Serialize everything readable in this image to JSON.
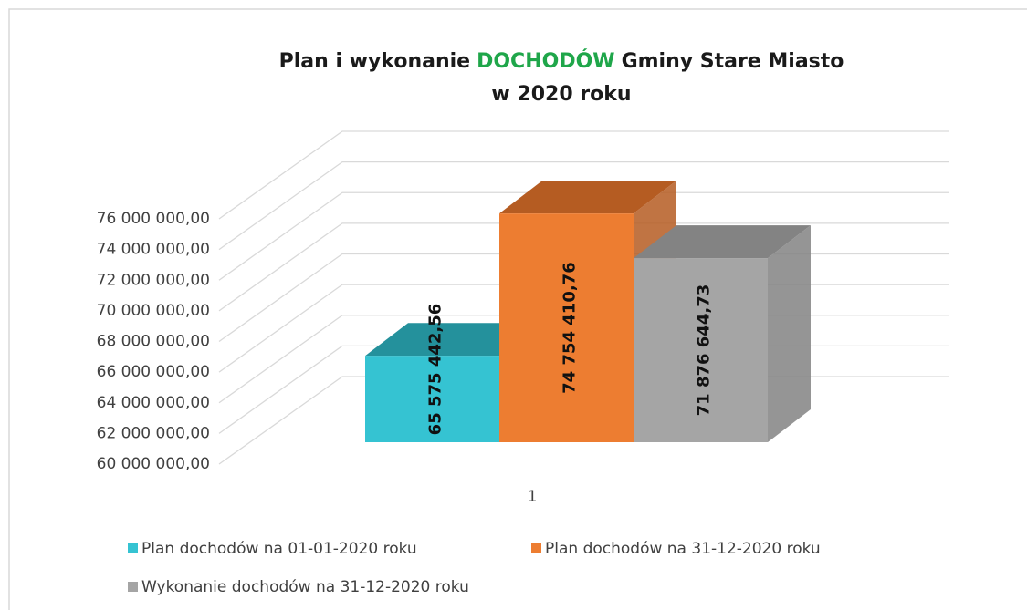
{
  "chart_data": {
    "type": "bar3d",
    "title": {
      "before": "Plan i wykonanie",
      "highlight": "DOCHODÓW",
      "after": "Gminy Stare Miasto",
      "line2": "w 2020 roku",
      "highlight_color": "#1fa64a"
    },
    "categories": [
      "1"
    ],
    "series": [
      {
        "name": "Plan dochodów na 01-01-2020 roku",
        "color": "#35c3d2",
        "top_color": "#24919c",
        "values": [
          65575442.56
        ],
        "value_labels": [
          "65 575 442,56"
        ]
      },
      {
        "name": "Plan dochodów na 31-12-2020 roku",
        "color": "#ed7d31",
        "top_color": "#b55c22",
        "values": [
          74754410.76
        ],
        "value_labels": [
          "74 754 410,76"
        ]
      },
      {
        "name": "Wykonanie dochodów na 31-12-2020 roku",
        "color": "#a5a5a5",
        "top_color": "#838383",
        "values": [
          71876644.73
        ],
        "value_labels": [
          "71 876 644,73"
        ]
      }
    ],
    "ylim": [
      60000000,
      76000000
    ],
    "yticks": [
      {
        "value": 60000000,
        "label": "60 000 000,00"
      },
      {
        "value": 62000000,
        "label": "62 000 000,00"
      },
      {
        "value": 64000000,
        "label": "64 000 000,00"
      },
      {
        "value": 66000000,
        "label": "66 000 000,00"
      },
      {
        "value": 68000000,
        "label": "68 000 000,00"
      },
      {
        "value": 70000000,
        "label": "70 000 000,00"
      },
      {
        "value": 72000000,
        "label": "72 000 000,00"
      },
      {
        "value": 74000000,
        "label": "74 000 000,00"
      },
      {
        "value": 76000000,
        "label": "76 000 000,00"
      }
    ],
    "grid": true,
    "legend": "bottom"
  }
}
